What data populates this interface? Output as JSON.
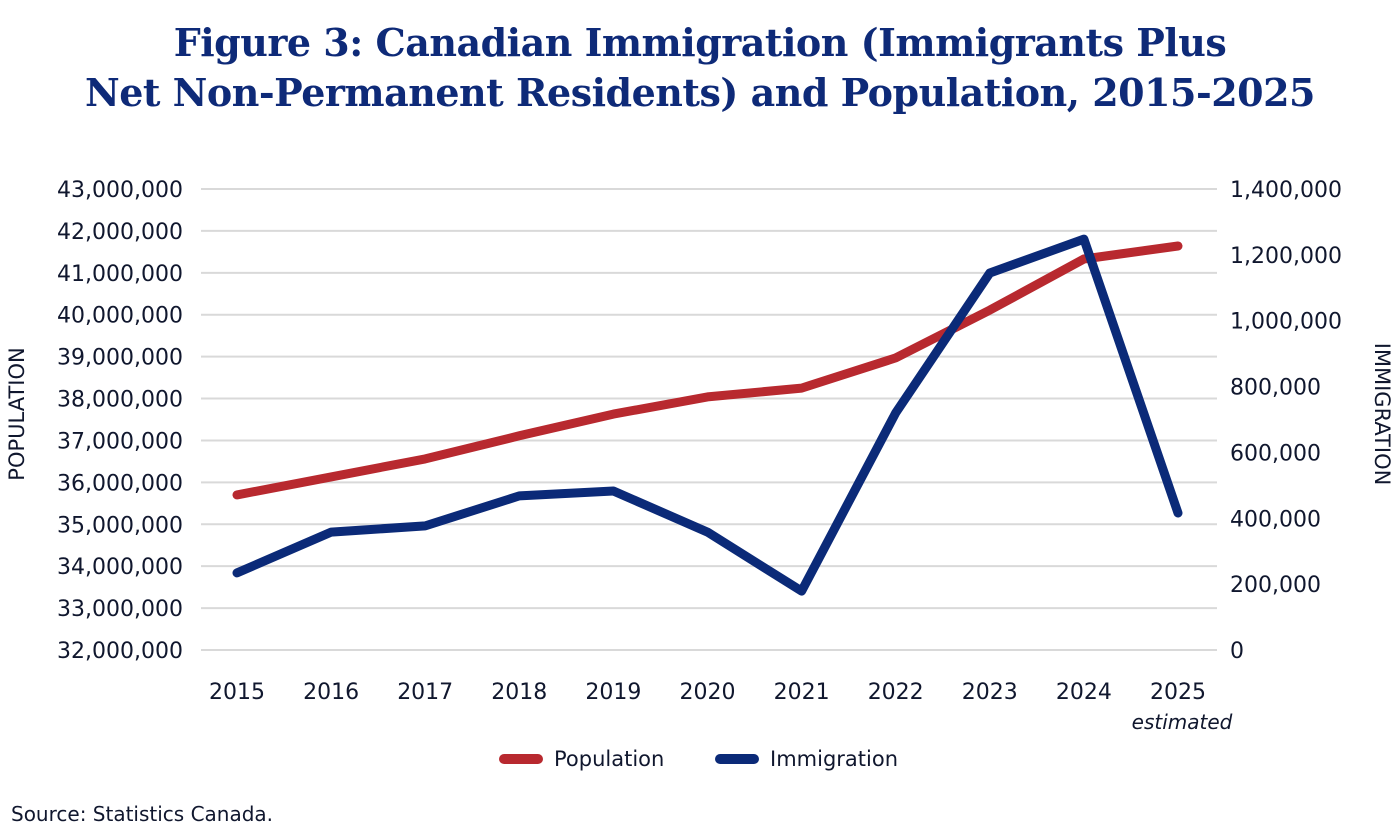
{
  "title": {
    "line1": "Figure 3: Canadian Immigration (Immigrants Plus",
    "line2": "Net Non-Permanent Residents) and Population, 2015-2025"
  },
  "source": "Source: Statistics Canada.",
  "chart_data": {
    "type": "line",
    "title": "Figure 3: Canadian Immigration (Immigrants Plus Net Non-Permanent Residents) and Population, 2015-2025",
    "categories": [
      "2015",
      "2016",
      "2017",
      "2018",
      "2019",
      "2020",
      "2021",
      "2022",
      "2023",
      "2024",
      "2025"
    ],
    "x_annotation": {
      "category": "2025",
      "text": "estimated"
    },
    "xlabel": "",
    "y_left": {
      "label": "POPULATION",
      "range": [
        32000000,
        43000000
      ],
      "ticks": [
        32000000,
        33000000,
        34000000,
        35000000,
        36000000,
        37000000,
        38000000,
        39000000,
        40000000,
        41000000,
        42000000,
        43000000
      ],
      "tick_labels": [
        "32,000,000",
        "33,000,000",
        "34,000,000",
        "35,000,000",
        "36,000,000",
        "37,000,000",
        "38,000,000",
        "39,000,000",
        "40,000,000",
        "41,000,000",
        "42,000,000",
        "43,000,000"
      ]
    },
    "y_right": {
      "label": "IMMIGRATION",
      "range": [
        0,
        1400000
      ],
      "ticks": [
        0,
        200000,
        400000,
        600000,
        800000,
        1000000,
        1200000,
        1400000
      ],
      "tick_labels": [
        "0",
        "200,000",
        "400,000",
        "600,000",
        "800,000",
        "1,000,000",
        "1,200,000",
        "1,400,000"
      ]
    },
    "grid": true,
    "legend_position": "bottom-center",
    "series": [
      {
        "name": "Population",
        "axis": "left",
        "color": "#b8292f",
        "values": [
          35700000,
          36130000,
          36560000,
          37110000,
          37630000,
          38040000,
          38250000,
          38970000,
          40110000,
          41330000,
          41640000
        ]
      },
      {
        "name": "Immigration",
        "axis": "right",
        "color": "#0b2a78",
        "values": [
          234000,
          358000,
          377000,
          468000,
          483000,
          358000,
          179000,
          720000,
          1145000,
          1248000,
          416000
        ]
      }
    ]
  }
}
